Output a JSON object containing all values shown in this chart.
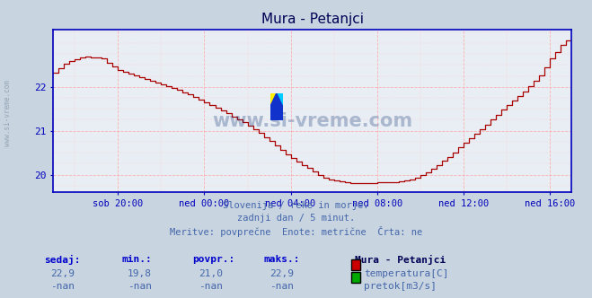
{
  "title": "Mura - Petanjci",
  "bg_color": "#c8d4e0",
  "plot_bg_color": "#e8eef4",
  "grid_color_major": "#ffaaaa",
  "grid_color_minor": "#ffd0d0",
  "line_color": "#aa0000",
  "axis_color": "#0000bb",
  "text_color": "#4466aa",
  "title_color": "#000055",
  "ylim": [
    19.6,
    23.3
  ],
  "yticks": [
    20,
    21,
    22
  ],
  "ytick_labels": [
    "20",
    "21",
    "22"
  ],
  "xlim_steps": 288,
  "x_tick_positions": [
    36,
    84,
    132,
    180,
    228,
    276
  ],
  "x_tick_labels": [
    "sob 20:00",
    "ned 00:00",
    "ned 04:00",
    "ned 08:00",
    "ned 12:00",
    "ned 16:00"
  ],
  "subtitle_lines": [
    "Slovenija / reke in morje.",
    "zadnji dan / 5 minut.",
    "Meritve: povprečne  Enote: metrične  Črta: ne"
  ],
  "stats_headers": [
    "sedaj:",
    "min.:",
    "povpr.:",
    "maks.:"
  ],
  "stats_values_temp": [
    "22,9",
    "19,8",
    "21,0",
    "22,9"
  ],
  "stats_values_pretok": [
    "-nan",
    "-nan",
    "-nan",
    "-nan"
  ],
  "legend_station": "Mura - Petanjci",
  "legend_temp_label": "temperatura[C]",
  "legend_pretok_label": "pretok[m3/s]",
  "legend_temp_color": "#cc0000",
  "legend_pretok_color": "#00aa00",
  "watermark": "www.si-vreme.com",
  "watermark_color": "#1a3a7a",
  "left_watermark": "www.si-vreme.com",
  "left_watermark_color": "#8899aa"
}
